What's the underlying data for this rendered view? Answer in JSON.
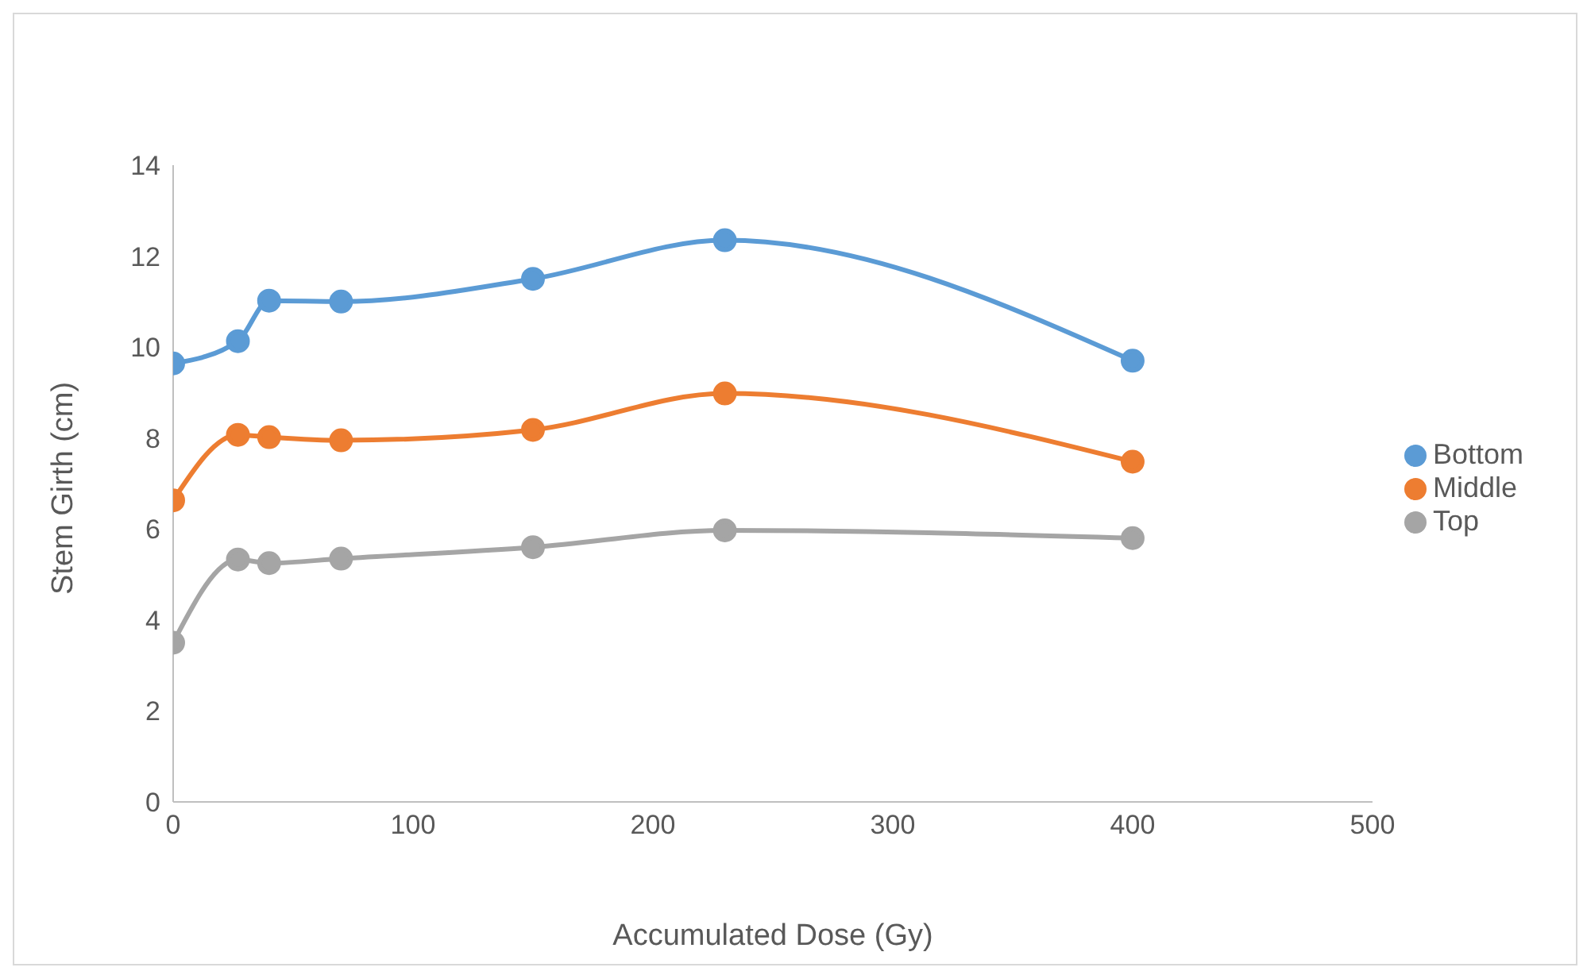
{
  "chart_data": {
    "type": "line",
    "xlabel": "Accumulated Dose (Gy)",
    "ylabel": "Stem Girth (cm)",
    "x": [
      0,
      27,
      40,
      70,
      150,
      230,
      400
    ],
    "series": [
      {
        "name": "Bottom",
        "color": "#5b9bd5",
        "values": [
          9.64,
          10.13,
          11.02,
          11.0,
          11.5,
          12.35,
          9.7
        ]
      },
      {
        "name": "Middle",
        "color": "#ed7d31",
        "values": [
          6.63,
          8.07,
          8.02,
          7.95,
          8.18,
          8.98,
          7.48
        ]
      },
      {
        "name": "Top",
        "color": "#a5a5a5",
        "values": [
          3.5,
          5.33,
          5.25,
          5.35,
          5.6,
          5.97,
          5.8
        ]
      }
    ],
    "xlim": [
      0,
      500
    ],
    "xticks": [
      0,
      100,
      200,
      300,
      400,
      500
    ],
    "ylim": [
      0,
      14
    ],
    "yticks": [
      0,
      2,
      4,
      6,
      8,
      10,
      12,
      14
    ],
    "grid": false,
    "legend": "right",
    "marker": "circle"
  }
}
